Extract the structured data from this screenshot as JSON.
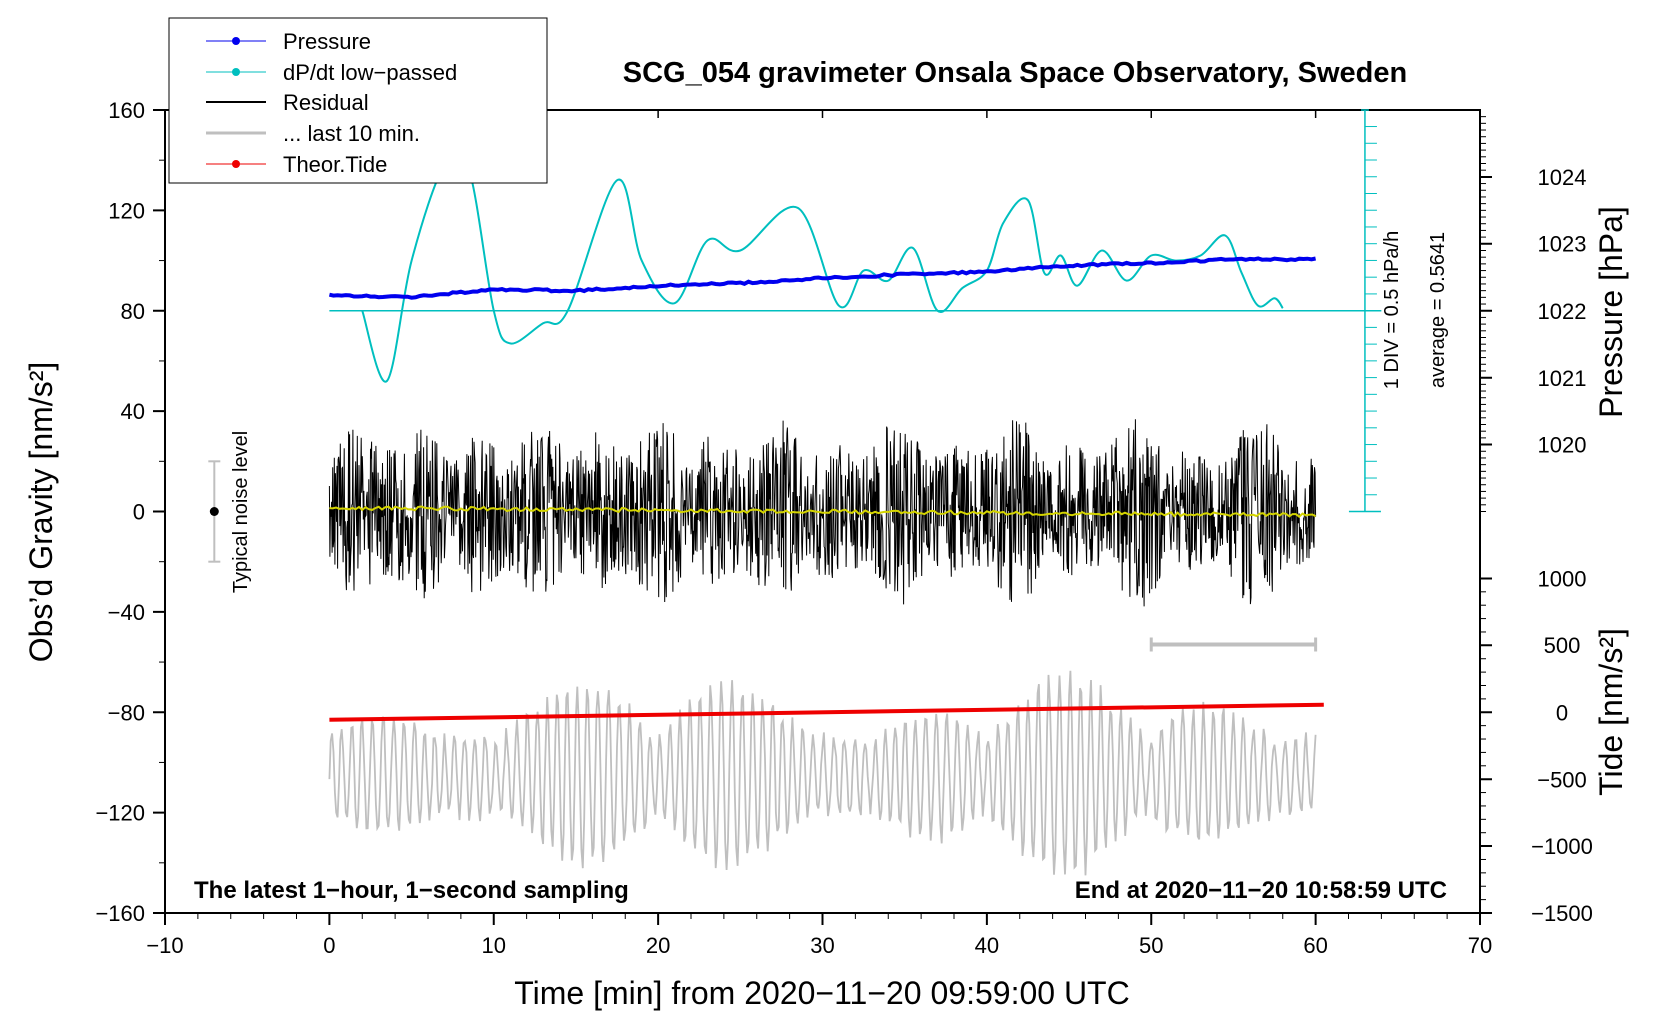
{
  "chart_data": {
    "type": "line",
    "title": "SCG_054 gravimeter Onsala Space Observatory, Sweden",
    "xlabel": "Time [min] from 2020−11−20 09:59:00 UTC",
    "ylabel_left": "Obs’d Gravity [nm/s²]",
    "ylabel_right_top": "Pressure [hPa]",
    "ylabel_right_bottom": "Tide [nm/s²]",
    "xlim": [
      -10,
      70
    ],
    "ylim": [
      -160,
      160
    ],
    "xticks": [
      -10,
      0,
      10,
      20,
      30,
      40,
      50,
      60,
      70
    ],
    "xtick_labels": [
      "−10",
      "0",
      "10",
      "20",
      "30",
      "40",
      "50",
      "60",
      "70"
    ],
    "yticks": [
      160,
      120,
      80,
      40,
      0,
      -40,
      -80,
      -120,
      -160
    ],
    "ytick_labels": [
      "160",
      "120",
      "80",
      "40",
      "0",
      "−40",
      "−80",
      "−120",
      "−160"
    ],
    "pressure_axis": {
      "ticks": [
        1024,
        1023,
        1022,
        1021,
        1020
      ],
      "tick_labels": [
        "1024",
        "1023",
        "1022",
        "1021",
        "1020"
      ],
      "gravity_at": [
        133.3,
        106.7,
        80,
        53.3,
        26.7
      ]
    },
    "tide_axis": {
      "ticks": [
        1000,
        500,
        0,
        -500,
        -1000,
        -1500
      ],
      "tick_labels": [
        "1000",
        "500",
        "0",
        "−500",
        "−1000",
        "−1500"
      ],
      "gravity_at": [
        -26.7,
        -53.3,
        -80,
        -106.7,
        -133.3,
        -160
      ]
    },
    "legend": [
      {
        "label": "Pressure",
        "color": "#0000ee",
        "marker": true
      },
      {
        "label": "dP/dt low−passed",
        "color": "#00bfbf",
        "marker": true
      },
      {
        "label": "Residual",
        "color": "#000000",
        "marker": false
      },
      {
        "label": "... last 10 min.",
        "color": "#bfbfbf",
        "marker": false
      },
      {
        "label": "Theor.Tide",
        "color": "#ee0000",
        "marker": true
      }
    ],
    "series": [
      {
        "name": "Pressure",
        "color": "#0000ee",
        "x": [
          0,
          5,
          10,
          15,
          20,
          25,
          30,
          35,
          40,
          45,
          50,
          55,
          60
        ],
        "values": [
          86,
          85.5,
          88.5,
          88,
          90,
          91,
          93,
          94.5,
          95.5,
          98,
          99,
          100.5,
          100.5
        ]
      },
      {
        "name": "dP/dt low−passed",
        "color": "#00bfbf",
        "x": [
          2,
          3.5,
          5,
          7,
          8.5,
          10,
          11,
          13,
          14.5,
          17.5,
          19,
          21,
          23,
          25,
          28.5,
          31,
          32.5,
          34,
          35.5,
          37,
          38.5,
          40,
          41,
          42.5,
          43.5,
          44.5,
          45.5,
          47,
          48.5,
          50,
          51.5,
          53,
          54.5,
          55.5,
          56.5,
          57.5,
          58
        ],
        "values": [
          80,
          52,
          100,
          138,
          136,
          80,
          67,
          75,
          80,
          132,
          100,
          83,
          108,
          104,
          121,
          82,
          96,
          92,
          105,
          80,
          89,
          96,
          115,
          124,
          95,
          102,
          90,
          104,
          92,
          102,
          100,
          102,
          110,
          95,
          82,
          85,
          81
        ]
      },
      {
        "name": "Residual",
        "color": "#000000",
        "center": 0,
        "x_start": 0,
        "x_end": 60,
        "amplitude": 33
      },
      {
        "name": "Residual smooth",
        "color": "#d4d400",
        "x": [
          0,
          60
        ],
        "values": [
          1.5,
          -1.5
        ]
      },
      {
        "name": "... last 10 min.",
        "color": "#bfbfbf",
        "center": -105,
        "x_start": 0,
        "x_end": 60,
        "amplitude": 40
      },
      {
        "name": "Theor.Tide",
        "color": "#ee0000",
        "x": [
          0,
          60.5
        ],
        "values": [
          -83,
          -77
        ]
      }
    ],
    "baseline": {
      "value": 80,
      "x_start": 0,
      "x_end": 64
    },
    "scale_bar": {
      "x": 63,
      "y_top": 160,
      "y_bottom": 0,
      "tick_step": 6.67,
      "label_top": "1 DIV = 0.5 hPa/h",
      "label_bottom": "average = 0.5641"
    },
    "gray_range": {
      "x_start": 50,
      "x_end": 60,
      "value": -53
    },
    "noise_bar": {
      "x": -7,
      "value": 0,
      "low": -20,
      "high": 20,
      "label": "Typical noise level"
    },
    "notes": {
      "left": "The latest 1−hour, 1−second sampling",
      "right": "End at 2020−11−20 10:58:59 UTC"
    }
  }
}
